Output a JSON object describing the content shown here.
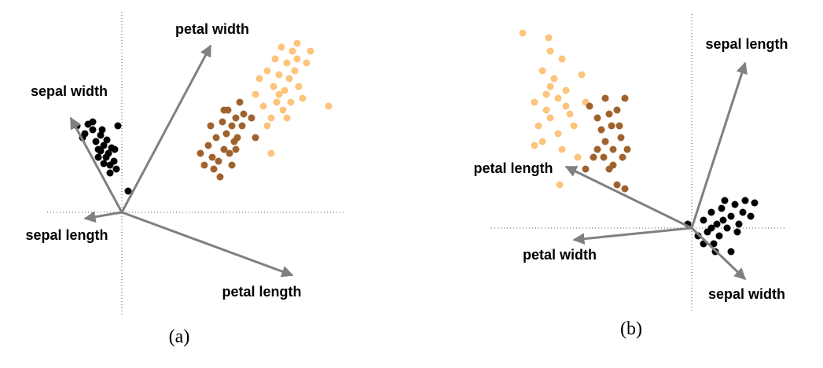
{
  "chart_data": [
    {
      "type": "scatter",
      "caption": "(a)",
      "xlim": [
        -95,
        285
      ],
      "ylim": [
        -130,
        255
      ],
      "series": [
        {
          "color": "#000000",
          "x": [
            -57,
            -50,
            -43,
            -37,
            -33,
            -30,
            -27,
            -23,
            -20,
            -17,
            -15,
            -13,
            -10,
            -7,
            -5,
            -37,
            -25,
            -19,
            -30,
            -15,
            8,
            -47,
            -9,
            -23,
            -27
          ],
          "y": [
            110,
            95,
            112,
            105,
            90,
            80,
            98,
            85,
            70,
            75,
            60,
            82,
            65,
            55,
            110,
            115,
            105,
            92,
            70,
            50,
            27,
            100,
            80,
            62,
            78
          ]
        },
        {
          "color": "#a0622d",
          "x": [
            100,
            105,
            110,
            113,
            115,
            120,
            123,
            125,
            128,
            130,
            133,
            135,
            137,
            140,
            143,
            145,
            147,
            150,
            153,
            155,
            140,
            117,
            130,
            145,
            165,
            170
          ],
          "y": [
            75,
            60,
            85,
            110,
            70,
            95,
            65,
            45,
            115,
            80,
            100,
            130,
            75,
            110,
            90,
            120,
            95,
            140,
            110,
            125,
            60,
            55,
            130,
            80,
            120,
            95
          ]
        },
        {
          "color": "#fdc47c",
          "x": [
            170,
            175,
            180,
            185,
            190,
            193,
            195,
            197,
            200,
            203,
            205,
            207,
            210,
            213,
            215,
            217,
            220,
            223,
            225,
            230,
            235,
            240,
            263,
            190,
            185,
            210,
            223,
            200
          ],
          "y": [
            150,
            170,
            135,
            180,
            120,
            160,
            195,
            140,
            175,
            210,
            130,
            155,
            190,
            170,
            140,
            205,
            180,
            215,
            160,
            145,
            190,
            205,
            135,
            75,
            110,
            120,
            195,
            150
          ]
        }
      ],
      "vectors": [
        {
          "label": "petal width",
          "x": 113,
          "y": 212
        },
        {
          "label": "sepal width",
          "x": -65,
          "y": 120
        },
        {
          "label": "sepal length",
          "x": -47,
          "y": -8
        },
        {
          "label": "petal length",
          "x": 217,
          "y": -80
        }
      ]
    },
    {
      "type": "scatter",
      "caption": "(b)",
      "xlim": [
        -255,
        120
      ],
      "ylim": [
        -105,
        275
      ],
      "series": [
        {
          "color": "#fdc47c",
          "x": [
            -215,
            -182,
            -180,
            -165,
            -190,
            -175,
            -140,
            -200,
            -185,
            -170,
            -160,
            -195,
            -180,
            -155,
            -190,
            -170,
            -150,
            -165,
            -145,
            -200,
            -168,
            -180,
            -135,
            -160,
            -185
          ],
          "y": [
            248,
            242,
            225,
            215,
            200,
            190,
            195,
            160,
            170,
            165,
            155,
            130,
            140,
            145,
            110,
            120,
            130,
            100,
            90,
            105,
            55,
            180,
            160,
            175,
            150
          ]
        },
        {
          "color": "#a0622d",
          "x": [
            -130,
            -120,
            -115,
            -110,
            -105,
            -102,
            -100,
            -95,
            -90,
            -88,
            -85,
            -120,
            -112,
            -105,
            -95,
            -85,
            -125,
            -135,
            -110,
            -92,
            -82,
            -100
          ],
          "y": [
            155,
            140,
            125,
            165,
            145,
            130,
            100,
            150,
            115,
            90,
            165,
            100,
            90,
            75,
            55,
            50,
            90,
            75,
            110,
            130,
            100,
            80
          ]
        },
        {
          "color": "#000000",
          "x": [
            -5,
            8,
            15,
            20,
            25,
            28,
            32,
            35,
            38,
            40,
            45,
            50,
            55,
            60,
            65,
            68,
            75,
            80,
            50,
            30,
            15,
            42,
            58,
            25
          ],
          "y": [
            5,
            -10,
            10,
            -5,
            20,
            -20,
            5,
            -10,
            25,
            10,
            0,
            15,
            30,
            5,
            20,
            35,
            15,
            32,
            -30,
            -30,
            -20,
            35,
            -5,
            0
          ]
        }
      ],
      "vectors": [
        {
          "label": "sepal length",
          "x": 68,
          "y": 210
        },
        {
          "label": "petal length",
          "x": -160,
          "y": 78
        },
        {
          "label": "petal width",
          "x": -150,
          "y": -15
        },
        {
          "label": "sepal width",
          "x": 68,
          "y": -65
        }
      ]
    }
  ]
}
